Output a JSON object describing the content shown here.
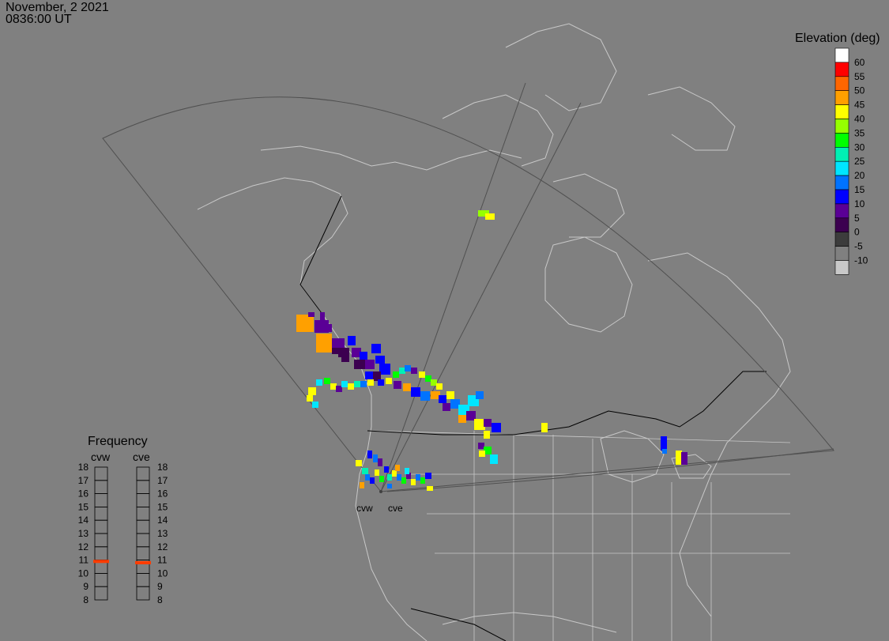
{
  "header": {
    "date": "November, 2 2021",
    "time": "0836:00 UT"
  },
  "colors": {
    "background": "#808080",
    "land_outline": "#c8c8c8",
    "fov_outline": "#505050",
    "border": "#000000",
    "frequency_marker": "#ff3c00"
  },
  "elevation_scale": {
    "title": "Elevation (deg)",
    "labels": [
      "60",
      "55",
      "50",
      "45",
      "40",
      "35",
      "30",
      "25",
      "20",
      "15",
      "10",
      "5",
      "0",
      "-5",
      "-10"
    ],
    "colors": [
      "#ffffff",
      "#ff0000",
      "#ff6600",
      "#ffa000",
      "#ffff00",
      "#96ff00",
      "#00ff00",
      "#00f0b4",
      "#00e6ff",
      "#0073ff",
      "#0000ff",
      "#5a0096",
      "#3c0050",
      "#3c3c3c",
      "#808080",
      "#c8c8c8"
    ]
  },
  "frequency_panel": {
    "title": "Frequency",
    "radars": [
      {
        "name": "cvw",
        "value": 10.9
      },
      {
        "name": "cve",
        "value": 10.8
      }
    ],
    "ticks": [
      "18",
      "17",
      "16",
      "15",
      "14",
      "13",
      "12",
      "11",
      "10",
      "9",
      "8"
    ]
  },
  "radar_sites": [
    "cvw",
    "cve"
  ]
}
